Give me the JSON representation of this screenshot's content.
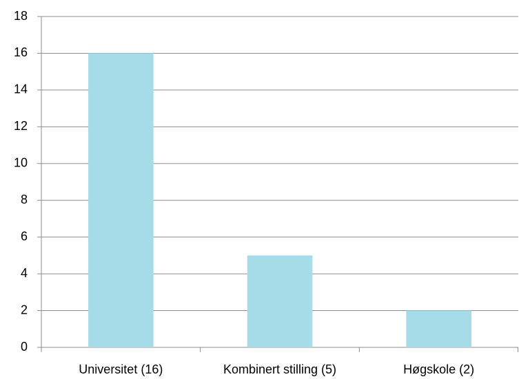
{
  "chart_data": {
    "type": "bar",
    "categories": [
      "Universitet (16)",
      "Kombinert stilling (5)",
      "Høgskole (2)"
    ],
    "values": [
      16,
      5,
      2
    ],
    "color": "#a5dce8",
    "ylim": [
      0,
      18
    ],
    "yticks": [
      0,
      2,
      4,
      6,
      8,
      10,
      12,
      14,
      16,
      18
    ],
    "grid": true
  }
}
